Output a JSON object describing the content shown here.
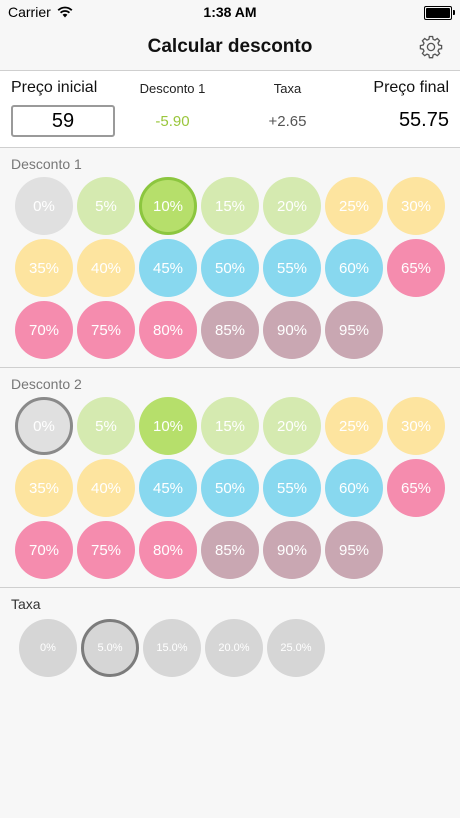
{
  "status": {
    "carrier": "Carrier",
    "time": "1:38 AM"
  },
  "nav": {
    "title": "Calcular desconto"
  },
  "summary": {
    "initial_label": "Preço inicial",
    "initial_value": "59",
    "discount_label": "Desconto 1",
    "discount_value": "-5.90",
    "tax_label": "Taxa",
    "tax_value": "+2.65",
    "final_label": "Preço final",
    "final_value": "55.75"
  },
  "discount1": {
    "label": "Desconto 1",
    "selected": "10%"
  },
  "discount2": {
    "label": "Desconto 2",
    "selected": "0%"
  },
  "discount_options": [
    {
      "label": "0%",
      "color": "#e0e0e0"
    },
    {
      "label": "5%",
      "color": "#d5eab0"
    },
    {
      "label": "10%",
      "color": "#b6df6b"
    },
    {
      "label": "15%",
      "color": "#d5eab0"
    },
    {
      "label": "20%",
      "color": "#d5eab0"
    },
    {
      "label": "25%",
      "color": "#fde49f"
    },
    {
      "label": "30%",
      "color": "#fde49f"
    },
    {
      "label": "35%",
      "color": "#fde49f"
    },
    {
      "label": "40%",
      "color": "#fde49f"
    },
    {
      "label": "45%",
      "color": "#88d8ef"
    },
    {
      "label": "50%",
      "color": "#88d8ef"
    },
    {
      "label": "55%",
      "color": "#88d8ef"
    },
    {
      "label": "60%",
      "color": "#88d8ef"
    },
    {
      "label": "65%",
      "color": "#f58cae"
    },
    {
      "label": "70%",
      "color": "#f58cae"
    },
    {
      "label": "75%",
      "color": "#f58cae"
    },
    {
      "label": "80%",
      "color": "#f58cae"
    },
    {
      "label": "85%",
      "color": "#c9a7b2"
    },
    {
      "label": "90%",
      "color": "#c9a7b2"
    },
    {
      "label": "95%",
      "color": "#c9a7b2"
    }
  ],
  "tax": {
    "label": "Taxa",
    "selected": "5.0%",
    "options": [
      "0%",
      "5.0%",
      "15.0%",
      "20.0%",
      "25.0%"
    ]
  },
  "icons": {
    "settings": "gear-icon",
    "wifi": "wifi-icon",
    "battery": "battery-icon"
  }
}
